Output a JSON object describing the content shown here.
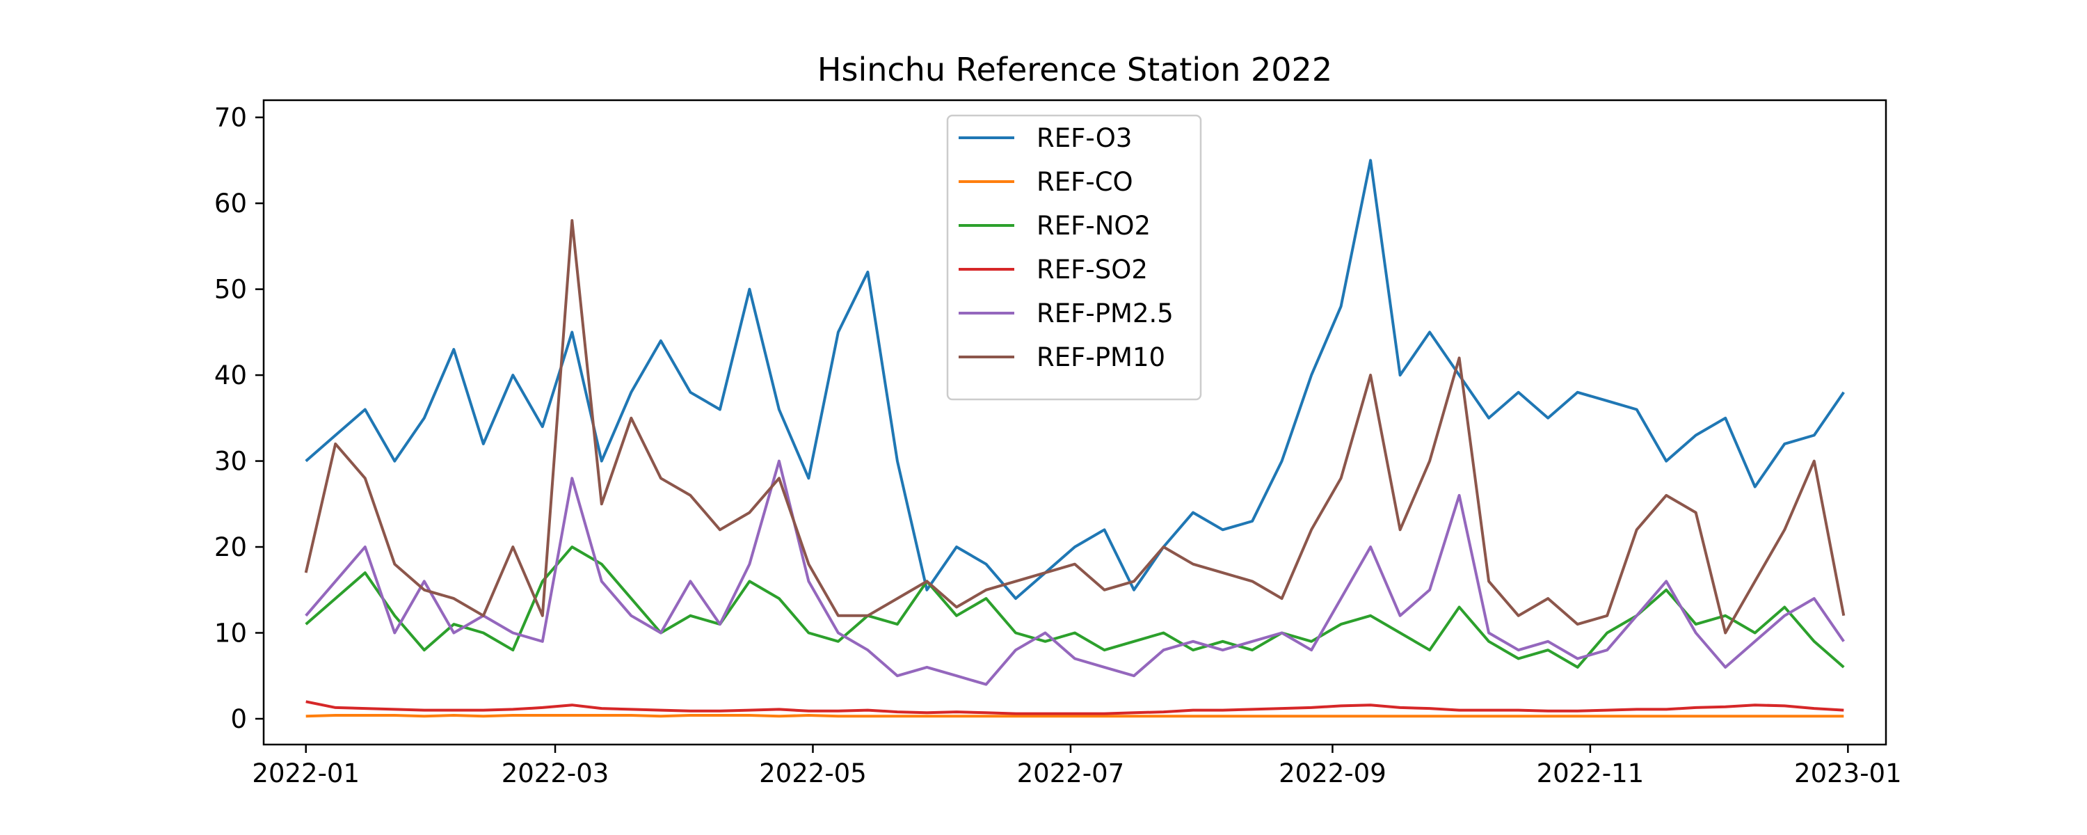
{
  "chart_data": {
    "type": "line",
    "title": "Hsinchu Reference Station 2022",
    "xlabel": "",
    "ylabel": "",
    "xlim": [
      "2021-12-22",
      "2023-01-10"
    ],
    "ylim": [
      -3,
      72
    ],
    "x_ticks": [
      "2022-01",
      "2022-03",
      "2022-05",
      "2022-07",
      "2022-09",
      "2022-11",
      "2023-01"
    ],
    "y_ticks": [
      0,
      10,
      20,
      30,
      40,
      50,
      60,
      70
    ],
    "grid": false,
    "legend": "top-center",
    "x": [
      "2022-01-01",
      "2022-01-08",
      "2022-01-15",
      "2022-01-22",
      "2022-01-29",
      "2022-02-05",
      "2022-02-12",
      "2022-02-19",
      "2022-02-26",
      "2022-03-05",
      "2022-03-12",
      "2022-03-19",
      "2022-03-26",
      "2022-04-02",
      "2022-04-09",
      "2022-04-16",
      "2022-04-23",
      "2022-04-30",
      "2022-05-07",
      "2022-05-14",
      "2022-05-21",
      "2022-05-28",
      "2022-06-04",
      "2022-06-11",
      "2022-06-18",
      "2022-06-25",
      "2022-07-02",
      "2022-07-09",
      "2022-07-16",
      "2022-07-23",
      "2022-07-30",
      "2022-08-06",
      "2022-08-13",
      "2022-08-20",
      "2022-08-27",
      "2022-09-03",
      "2022-09-10",
      "2022-09-17",
      "2022-09-24",
      "2022-10-01",
      "2022-10-08",
      "2022-10-15",
      "2022-10-22",
      "2022-10-29",
      "2022-11-05",
      "2022-11-12",
      "2022-11-19",
      "2022-11-26",
      "2022-12-03",
      "2022-12-10",
      "2022-12-17",
      "2022-12-24",
      "2022-12-31"
    ],
    "series": [
      {
        "name": "REF-O3",
        "color": "#1f77b4",
        "values": [
          30,
          33,
          36,
          30,
          35,
          43,
          32,
          40,
          34,
          45,
          30,
          38,
          44,
          38,
          36,
          50,
          36,
          28,
          45,
          52,
          30,
          15,
          20,
          18,
          14,
          17,
          20,
          22,
          15,
          20,
          24,
          22,
          23,
          30,
          40,
          48,
          65,
          40,
          45,
          40,
          35,
          38,
          35,
          38,
          37,
          36,
          30,
          33,
          35,
          27,
          32,
          33,
          38
        ]
      },
      {
        "name": "REF-CO",
        "color": "#ff7f0e",
        "values": [
          0.3,
          0.4,
          0.4,
          0.4,
          0.3,
          0.4,
          0.3,
          0.4,
          0.4,
          0.4,
          0.4,
          0.4,
          0.3,
          0.4,
          0.4,
          0.4,
          0.3,
          0.4,
          0.3,
          0.3,
          0.3,
          0.3,
          0.3,
          0.3,
          0.3,
          0.3,
          0.3,
          0.3,
          0.3,
          0.3,
          0.3,
          0.3,
          0.3,
          0.3,
          0.3,
          0.3,
          0.3,
          0.3,
          0.3,
          0.3,
          0.3,
          0.3,
          0.3,
          0.3,
          0.3,
          0.3,
          0.3,
          0.3,
          0.3,
          0.3,
          0.3,
          0.3,
          0.3
        ]
      },
      {
        "name": "REF-NO2",
        "color": "#2ca02c",
        "values": [
          11,
          14,
          17,
          12,
          8,
          11,
          10,
          8,
          16,
          20,
          18,
          14,
          10,
          12,
          11,
          16,
          14,
          10,
          9,
          12,
          11,
          16,
          12,
          14,
          10,
          9,
          10,
          8,
          9,
          10,
          8,
          9,
          8,
          10,
          9,
          11,
          12,
          10,
          8,
          13,
          9,
          7,
          8,
          6,
          10,
          12,
          15,
          11,
          12,
          10,
          13,
          9,
          6
        ]
      },
      {
        "name": "REF-SO2",
        "color": "#d62728",
        "values": [
          2,
          1.3,
          1.2,
          1.1,
          1.0,
          1.0,
          1.0,
          1.1,
          1.3,
          1.6,
          1.2,
          1.1,
          1.0,
          0.9,
          0.9,
          1.0,
          1.1,
          0.9,
          0.9,
          1.0,
          0.8,
          0.7,
          0.8,
          0.7,
          0.6,
          0.6,
          0.6,
          0.6,
          0.7,
          0.8,
          1.0,
          1.0,
          1.1,
          1.2,
          1.3,
          1.5,
          1.6,
          1.3,
          1.2,
          1.0,
          1.0,
          1.0,
          0.9,
          0.9,
          1.0,
          1.1,
          1.1,
          1.3,
          1.4,
          1.6,
          1.5,
          1.2,
          1.0
        ]
      },
      {
        "name": "REF-PM2.5",
        "color": "#9467bd",
        "values": [
          12,
          16,
          20,
          10,
          16,
          10,
          12,
          10,
          9,
          28,
          16,
          12,
          10,
          16,
          11,
          18,
          30,
          16,
          10,
          8,
          5,
          6,
          5,
          4,
          8,
          10,
          7,
          6,
          5,
          8,
          9,
          8,
          9,
          10,
          8,
          14,
          20,
          12,
          15,
          26,
          10,
          8,
          9,
          7,
          8,
          12,
          16,
          10,
          6,
          9,
          12,
          14,
          9
        ]
      },
      {
        "name": "REF-PM10",
        "color": "#8c564b",
        "values": [
          17,
          32,
          28,
          18,
          15,
          14,
          12,
          20,
          12,
          58,
          25,
          35,
          28,
          26,
          22,
          24,
          28,
          18,
          12,
          12,
          14,
          16,
          13,
          15,
          16,
          17,
          18,
          15,
          16,
          20,
          18,
          17,
          16,
          14,
          22,
          28,
          40,
          22,
          30,
          42,
          16,
          12,
          14,
          11,
          12,
          22,
          26,
          24,
          10,
          16,
          22,
          30,
          12
        ]
      }
    ]
  }
}
